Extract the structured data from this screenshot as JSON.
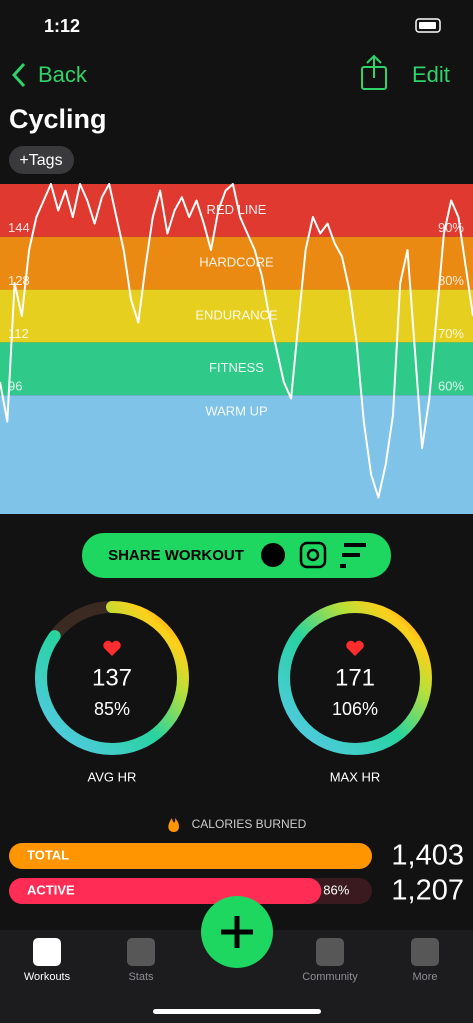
{
  "status": {
    "time": "1:12"
  },
  "nav": {
    "back": "Back",
    "edit": "Edit"
  },
  "title": "Cycling",
  "tags": "+Tags",
  "chart_data": {
    "type": "line",
    "ylim": [
      60,
      160
    ],
    "yticks": [
      96,
      112,
      128,
      144
    ],
    "y2ticks": [
      {
        "value": 96,
        "label": "60%"
      },
      {
        "value": 112,
        "label": "70%"
      },
      {
        "value": 128,
        "label": "80%"
      },
      {
        "value": 144,
        "label": "90%"
      }
    ],
    "zones": [
      {
        "name": "RED LINE",
        "min": 144,
        "max": 160,
        "color": "#e0392f"
      },
      {
        "name": "HARDCORE",
        "min": 128,
        "max": 144,
        "color": "#ea8a12"
      },
      {
        "name": "ENDURANCE",
        "min": 112,
        "max": 128,
        "color": "#e6cf1e"
      },
      {
        "name": "FITNESS",
        "min": 96,
        "max": 112,
        "color": "#2fc98a"
      },
      {
        "name": "WARM UP",
        "min": 60,
        "max": 96,
        "color": "#7fc3e8"
      }
    ],
    "series": [
      {
        "color": "#ffffff",
        "values": [
          100,
          88,
          130,
          120,
          140,
          150,
          155,
          160,
          152,
          158,
          150,
          160,
          155,
          148,
          156,
          160,
          150,
          140,
          125,
          118,
          135,
          150,
          158,
          145,
          152,
          156,
          150,
          155,
          148,
          140,
          152,
          158,
          160,
          150,
          145,
          140,
          132,
          120,
          110,
          100,
          95,
          118,
          140,
          150,
          145,
          148,
          142,
          138,
          128,
          112,
          88,
          72,
          65,
          75,
          90,
          130,
          140,
          110,
          80,
          95,
          120,
          145,
          155,
          150,
          135,
          120
        ]
      }
    ]
  },
  "share": "SHARE WORKOUT",
  "rings": [
    {
      "value": 137,
      "percent": 85,
      "percent_label": "85%",
      "label": "AVG HR"
    },
    {
      "value": 171,
      "percent": 106,
      "percent_label": "106%",
      "label": "MAX HR"
    }
  ],
  "calories": {
    "title": "CALORIES BURNED",
    "bars": [
      {
        "name": "TOTAL",
        "value": 1403,
        "value_label": "1,403",
        "color": "#ff9500"
      },
      {
        "name": "ACTIVE",
        "value": 1207,
        "value_label": "1,207",
        "color": "#ff2d55",
        "percent_label": "86%"
      }
    ]
  },
  "tabs": [
    "Workouts",
    "Stats",
    "Community",
    "More"
  ]
}
